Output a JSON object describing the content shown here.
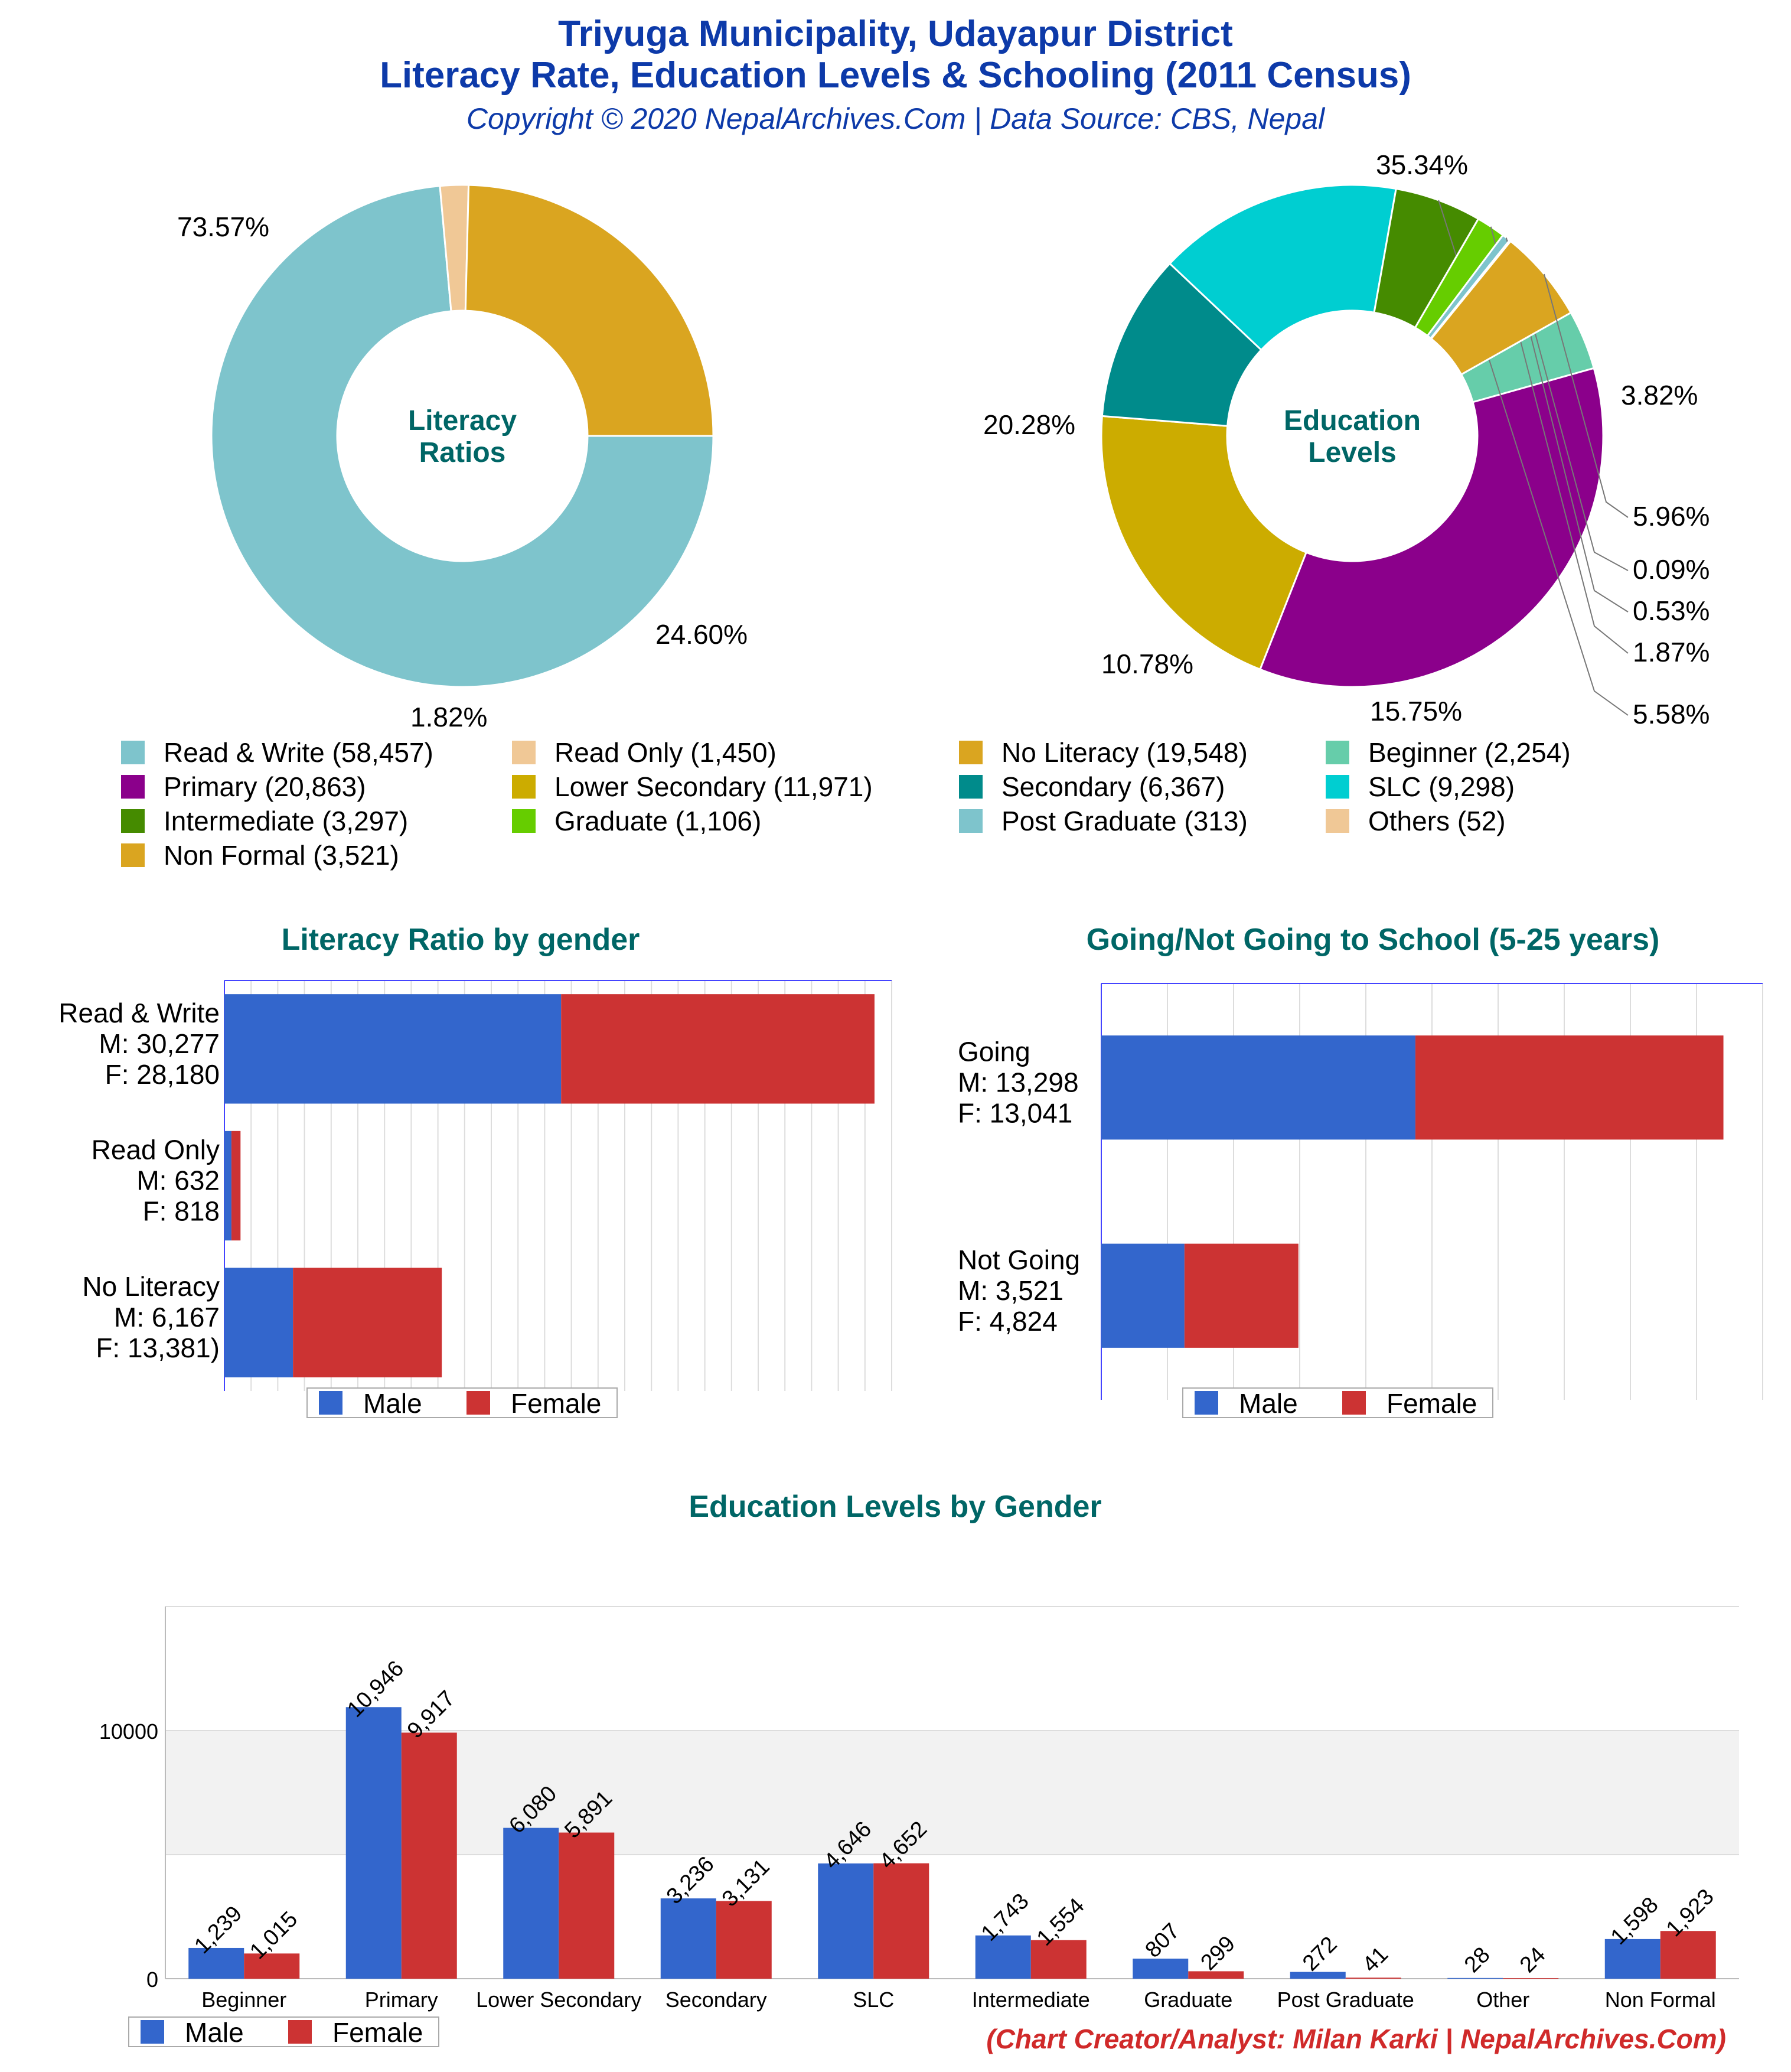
{
  "title": {
    "line1": "Triyuga Municipality, Udayapur District",
    "line2": "Literacy Rate, Education Levels & Schooling (2011 Census)",
    "subtitle": "Copyright © 2020 NepalArchives.Com | Data Source: CBS, Nepal"
  },
  "credit": "(Chart Creator/Analyst: Milan Karki | NepalArchives.Com)",
  "colors": {
    "male": "#3366cc",
    "female": "#cc3333",
    "heading": "#006666"
  },
  "chart_data": [
    {
      "type": "pie",
      "center_label": [
        "Literacy",
        "Ratios"
      ],
      "slices": [
        {
          "label": "Read & Write (58,457)",
          "value": 58457,
          "percent_label": "73.57%",
          "color": "#7ec4cc"
        },
        {
          "label": "Read Only (1,450)",
          "value": 1450,
          "percent_label": "1.82%",
          "color": "#f0c896"
        },
        {
          "label": "No Literacy (19,548)",
          "value": 19548,
          "percent_label": "24.60%",
          "color": "#daa520"
        }
      ]
    },
    {
      "type": "pie",
      "center_label": [
        "Education",
        "Levels"
      ],
      "slices": [
        {
          "label": "Beginner (2,254)",
          "value": 2254,
          "percent_label": "3.82%",
          "color": "#66cdaa"
        },
        {
          "label": "Primary (20,863)",
          "value": 20863,
          "percent_label": "35.34%",
          "color": "#8b008b"
        },
        {
          "label": "Lower Secondary (11,971)",
          "value": 11971,
          "percent_label": "20.28%",
          "color": "#ccac00"
        },
        {
          "label": "Secondary (6,367)",
          "value": 6367,
          "percent_label": "10.78%",
          "color": "#008b8b"
        },
        {
          "label": "SLC (9,298)",
          "value": 9298,
          "percent_label": "15.75%",
          "color": "#00ced1"
        },
        {
          "label": "Intermediate (3,297)",
          "value": 3297,
          "percent_label": "5.58%",
          "color": "#458b00"
        },
        {
          "label": "Graduate (1,106)",
          "value": 1106,
          "percent_label": "1.87%",
          "color": "#66cd00"
        },
        {
          "label": "Post Graduate (313)",
          "value": 313,
          "percent_label": "0.53%",
          "color": "#7ec4cc"
        },
        {
          "label": "Others (52)",
          "value": 52,
          "percent_label": "0.09%",
          "color": "#f0c896"
        },
        {
          "label": "Non Formal (3,521)",
          "value": 3521,
          "percent_label": "5.96%",
          "color": "#daa520"
        }
      ],
      "legend": [
        "Read & Write (58,457)",
        "Read Only (1,450)",
        "No Literacy (19,548)",
        "Beginner (2,254)",
        "Primary (20,863)",
        "Lower Secondary (11,971)",
        "Secondary (6,367)",
        "SLC (9,298)",
        "Intermediate (3,297)",
        "Graduate (1,106)",
        "Post Graduate (313)",
        "Others (52)",
        "Non Formal (3,521)"
      ]
    },
    {
      "type": "bar",
      "orientation": "horizontal-stacked",
      "title": "Literacy Ratio by gender",
      "categories": [
        {
          "lines": [
            "Read & Write",
            "M: 30,277",
            "F: 28,180"
          ],
          "male": 30277,
          "female": 28180
        },
        {
          "lines": [
            "Read Only",
            "M: 632",
            "F: 818"
          ],
          "male": 632,
          "female": 818
        },
        {
          "lines": [
            "No Literacy",
            "M: 6,167",
            "F: 13,381)"
          ],
          "male": 6167,
          "female": 13381
        }
      ],
      "xlim": [
        0,
        60000
      ],
      "legend": [
        "Male",
        "Female"
      ]
    },
    {
      "type": "bar",
      "orientation": "horizontal-stacked",
      "title": "Going/Not Going to School (5-25 years)",
      "categories": [
        {
          "lines": [
            "Going",
            "M: 13,298",
            "F: 13,041"
          ],
          "male": 13298,
          "female": 13041
        },
        {
          "lines": [
            "Not Going",
            "M: 3,521",
            "F: 4,824"
          ],
          "male": 3521,
          "female": 4824
        }
      ],
      "xlim": [
        0,
        28000
      ],
      "legend": [
        "Male",
        "Female"
      ]
    },
    {
      "type": "bar",
      "title": "Education Levels by Gender",
      "categories": [
        "Beginner",
        "Primary",
        "Lower Secondary",
        "Secondary",
        "SLC",
        "Intermediate",
        "Graduate",
        "Post Graduate",
        "Other",
        "Non Formal"
      ],
      "series": [
        {
          "name": "Male",
          "values": [
            1239,
            10946,
            6080,
            3236,
            4646,
            1743,
            807,
            272,
            28,
            1598
          ],
          "labels": [
            "1,239",
            "10,946",
            "6,080",
            "3,236",
            "4,646",
            "1,743",
            "807",
            "272",
            "28",
            "1,598"
          ]
        },
        {
          "name": "Female",
          "values": [
            1015,
            9917,
            5891,
            3131,
            4652,
            1554,
            299,
            41,
            24,
            1923
          ],
          "labels": [
            "1,015",
            "9,917",
            "5,891",
            "3,131",
            "4,652",
            "1,554",
            "299",
            "41",
            "24",
            "1,923"
          ]
        }
      ],
      "yticks": [
        "0",
        "10000"
      ],
      "ylim": [
        0,
        15000
      ],
      "legend": [
        "Male",
        "Female"
      ]
    }
  ]
}
